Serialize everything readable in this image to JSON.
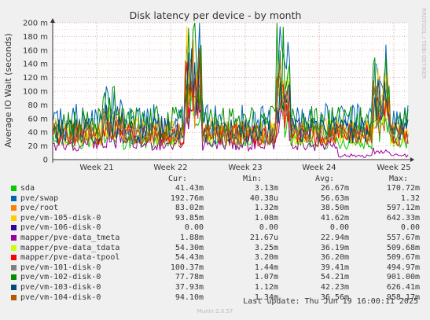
{
  "chart_data": {
    "type": "line",
    "title": "Disk latency per device - by month",
    "ylabel": "Average IO Wait (seconds)",
    "side_label": "RRDTOOL / TOBI OETIKER",
    "ylim": [
      0,
      200
    ],
    "yticks": [
      "0",
      "20 m",
      "40 m",
      "60 m",
      "80 m",
      "100 m",
      "120 m",
      "140 m",
      "160 m",
      "180 m",
      "200 m"
    ],
    "week_labels": [
      "Week 21",
      "Week 22",
      "Week 23",
      "Week 24",
      "Week 25"
    ],
    "grid": true,
    "legend_headers": {
      "cur": "Cur:",
      "min": "Min:",
      "avg": "Avg:",
      "max": "Max:"
    },
    "series": [
      {
        "name": "sda",
        "color": "#00cc00",
        "cur": "41.43m",
        "min": "3.13m",
        "avg": "26.67m",
        "max": "170.72m"
      },
      {
        "name": "pve/swap",
        "color": "#0066b3",
        "cur": "192.76m",
        "min": "40.38u",
        "avg": "56.63m",
        "max": "1.32"
      },
      {
        "name": "pve/root",
        "color": "#ff8000",
        "cur": "83.02m",
        "min": "1.32m",
        "avg": "38.50m",
        "max": "597.12m"
      },
      {
        "name": "pve/vm-105-disk-0",
        "color": "#ffcc00",
        "cur": "93.85m",
        "min": "1.08m",
        "avg": "41.62m",
        "max": "642.33m"
      },
      {
        "name": "pve/vm-106-disk-0",
        "color": "#330099",
        "cur": "0.00",
        "min": "0.00",
        "avg": "0.00",
        "max": "0.00"
      },
      {
        "name": "mapper/pve-data_tmeta",
        "color": "#990099",
        "cur": "1.88m",
        "min": "21.67u",
        "avg": "22.94m",
        "max": "557.67m"
      },
      {
        "name": "mapper/pve-data_tdata",
        "color": "#ccff00",
        "cur": "54.30m",
        "min": "3.25m",
        "avg": "36.19m",
        "max": "509.68m"
      },
      {
        "name": "mapper/pve-data-tpool",
        "color": "#ff0000",
        "cur": "54.43m",
        "min": "3.20m",
        "avg": "36.20m",
        "max": "509.67m"
      },
      {
        "name": "pve/vm-101-disk-0",
        "color": "#808080",
        "cur": "100.37m",
        "min": "1.44m",
        "avg": "39.41m",
        "max": "494.97m"
      },
      {
        "name": "pve/vm-102-disk-0",
        "color": "#008f00",
        "cur": "77.78m",
        "min": "1.07m",
        "avg": "54.21m",
        "max": "901.00m"
      },
      {
        "name": "pve/vm-103-disk-0",
        "color": "#00487d",
        "cur": "37.93m",
        "min": "1.12m",
        "avg": "42.23m",
        "max": "626.41m"
      },
      {
        "name": "pve/vm-104-disk-0",
        "color": "#b35a00",
        "cur": "94.10m",
        "min": "1.34m",
        "avg": "36.56m",
        "max": "958.17m"
      }
    ]
  },
  "last_update": "Last update: Thu Jun 19 16:00:11 2025",
  "footer": "Munin 2.0.57"
}
